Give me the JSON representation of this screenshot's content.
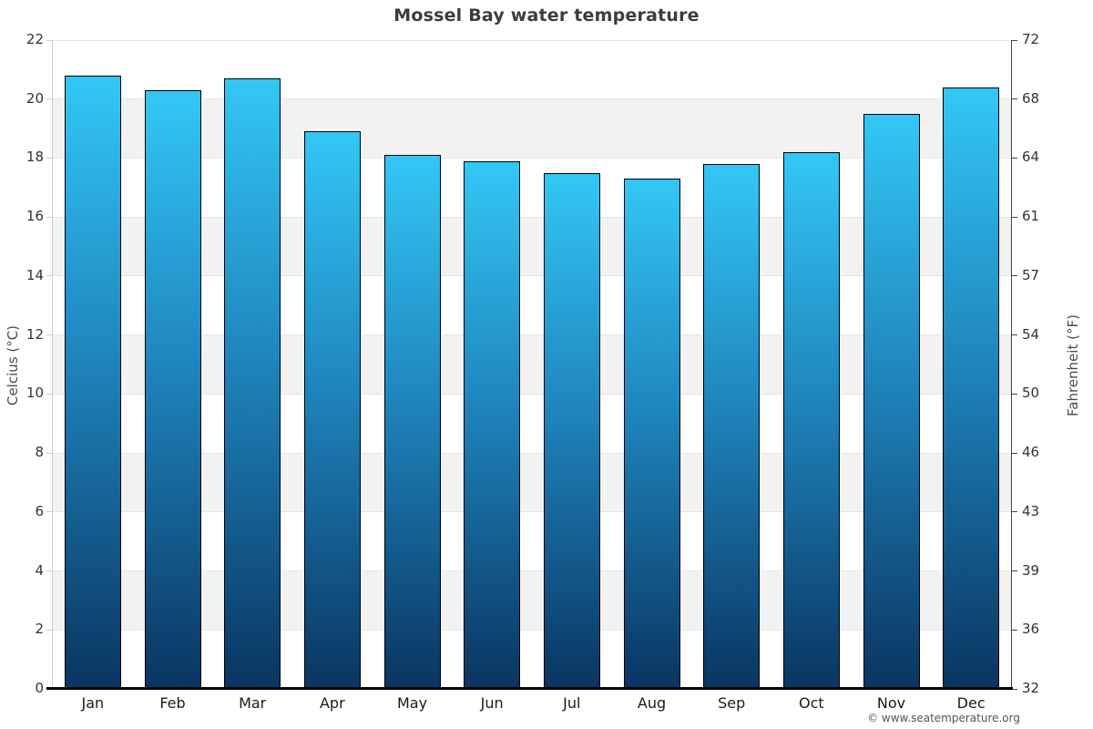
{
  "title": "Mossel Bay water temperature",
  "attribution": "© www.seatemperature.org",
  "axes": {
    "left_title": "Celcius (°C)",
    "right_title": "Fahrenheit (°F)"
  },
  "chart_data": {
    "type": "bar",
    "title": "Mossel Bay water temperature",
    "categories": [
      "Jan",
      "Feb",
      "Mar",
      "Apr",
      "May",
      "Jun",
      "Jul",
      "Aug",
      "Sep",
      "Oct",
      "Nov",
      "Dec"
    ],
    "values": [
      20.8,
      20.3,
      20.7,
      18.9,
      18.1,
      17.9,
      17.5,
      17.3,
      17.8,
      18.2,
      19.5,
      20.4
    ],
    "xlabel": "",
    "ylabel": "Celcius (°C)",
    "ylabel_right": "Fahrenheit (°F)",
    "ylim": [
      0,
      22
    ],
    "celsius_ticks": [
      0,
      2,
      4,
      6,
      8,
      10,
      12,
      14,
      16,
      18,
      20,
      22
    ],
    "fahrenheit_tick_labels": [
      32,
      36,
      39,
      43,
      46,
      50,
      54,
      57,
      61,
      64,
      68,
      72
    ],
    "grid": "alternating-horizontal-bands",
    "gray_bands_celsius": [
      [
        2,
        4
      ],
      [
        6,
        8
      ],
      [
        10,
        12
      ],
      [
        14,
        16
      ],
      [
        18,
        20
      ]
    ],
    "legend": "none",
    "colors": {
      "bar_gradient_top": "#33c7f5",
      "bar_gradient_mid": "#1f86be",
      "bar_gradient_bottom": "#0a3561",
      "bar_border": "#000000",
      "band_gray": "#f2f2f2",
      "gridline": "#e6e6e6",
      "left_axis_line": "#cccccc",
      "right_axis_line": "#444444",
      "bottom_axis_line": "#000000",
      "title_text": "#3c3c3c",
      "tick_text": "#333333"
    }
  }
}
